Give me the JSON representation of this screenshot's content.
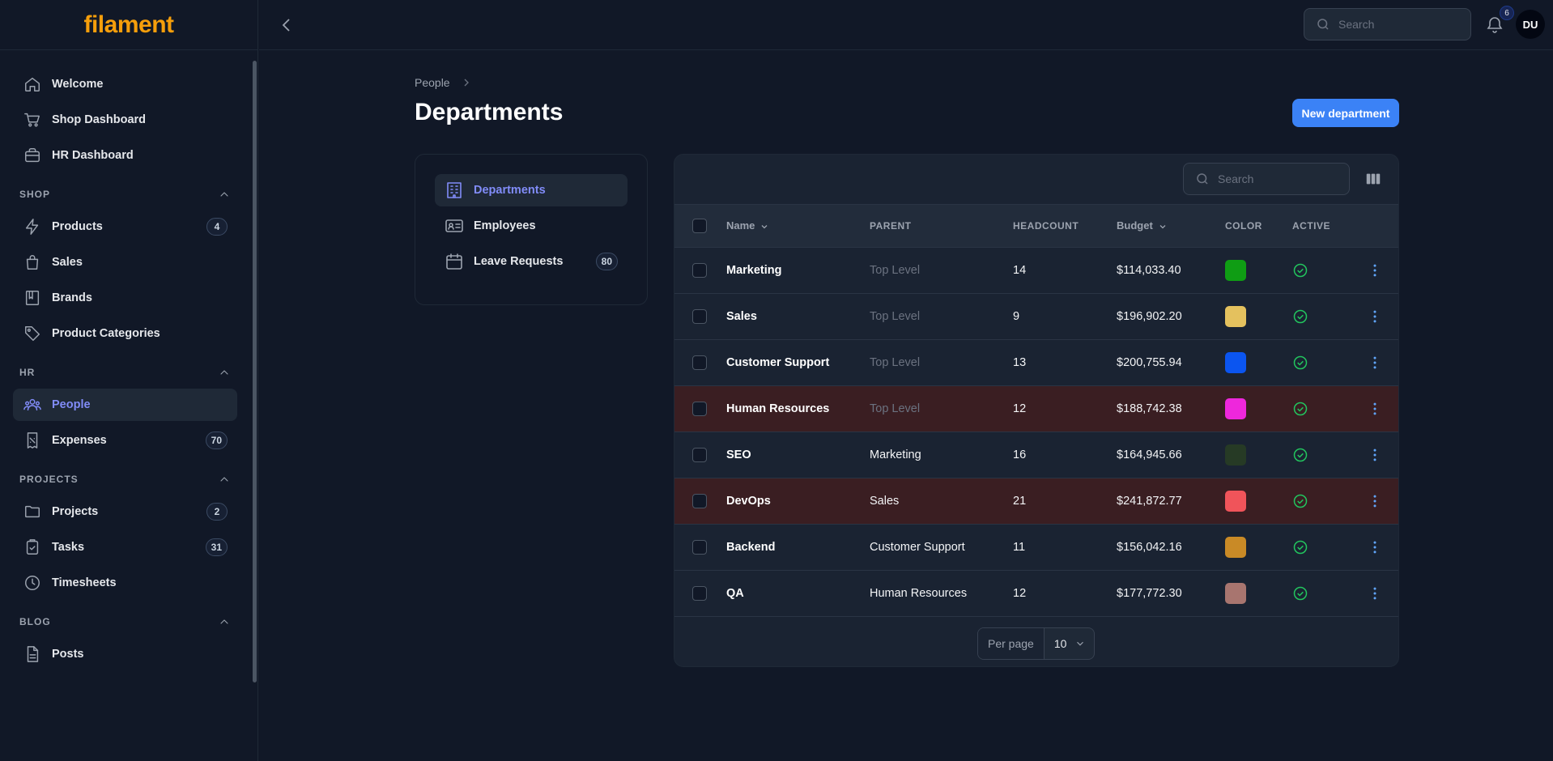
{
  "brand": "filament",
  "sidebar": {
    "top_items": [
      {
        "label": "Welcome",
        "icon": "home-icon"
      },
      {
        "label": "Shop Dashboard",
        "icon": "cart-icon"
      },
      {
        "label": "HR Dashboard",
        "icon": "briefcase-icon"
      }
    ],
    "groups": [
      {
        "label": "SHOP",
        "items": [
          {
            "label": "Products",
            "icon": "bolt-icon",
            "badge": "4"
          },
          {
            "label": "Sales",
            "icon": "bag-icon"
          },
          {
            "label": "Brands",
            "icon": "book-icon"
          },
          {
            "label": "Product Categories",
            "icon": "tag-icon"
          }
        ]
      },
      {
        "label": "HR",
        "items": [
          {
            "label": "People",
            "icon": "users-icon",
            "active": true
          },
          {
            "label": "Expenses",
            "icon": "receipt-icon",
            "badge": "70"
          }
        ]
      },
      {
        "label": "PROJECTS",
        "items": [
          {
            "label": "Projects",
            "icon": "folder-icon",
            "badge": "2"
          },
          {
            "label": "Tasks",
            "icon": "clipboard-check-icon",
            "badge": "31"
          },
          {
            "label": "Timesheets",
            "icon": "clock-icon"
          }
        ]
      },
      {
        "label": "BLOG",
        "items": [
          {
            "label": "Posts",
            "icon": "document-icon"
          }
        ]
      }
    ]
  },
  "topbar": {
    "search_placeholder": "Search",
    "notification_count": "6",
    "avatar_initials": "DU"
  },
  "breadcrumb": {
    "parent": "People"
  },
  "page": {
    "title": "Departments",
    "new_button": "New department"
  },
  "subnav": [
    {
      "label": "Departments",
      "icon": "building-icon",
      "active": true
    },
    {
      "label": "Employees",
      "icon": "id-card-icon"
    },
    {
      "label": "Leave Requests",
      "icon": "calendar-icon",
      "badge": "80"
    }
  ],
  "table": {
    "search_placeholder": "Search",
    "columns": {
      "name": "Name",
      "parent": "PARENT",
      "headcount": "HEADCOUNT",
      "budget": "Budget",
      "color": "COLOR",
      "active": "ACTIVE"
    },
    "rows": [
      {
        "name": "Marketing",
        "parent": "Top Level",
        "parent_muted": true,
        "headcount": "14",
        "budget": "$114,033.40",
        "color": "#0f9d14",
        "active": true,
        "danger": false
      },
      {
        "name": "Sales",
        "parent": "Top Level",
        "parent_muted": true,
        "headcount": "9",
        "budget": "$196,902.20",
        "color": "#e4c15e",
        "active": true,
        "danger": false
      },
      {
        "name": "Customer Support",
        "parent": "Top Level",
        "parent_muted": true,
        "headcount": "13",
        "budget": "$200,755.94",
        "color": "#0b55f0",
        "active": true,
        "danger": false
      },
      {
        "name": "Human Resources",
        "parent": "Top Level",
        "parent_muted": true,
        "headcount": "12",
        "budget": "$188,742.38",
        "color": "#ee27dc",
        "active": true,
        "danger": true
      },
      {
        "name": "SEO",
        "parent": "Marketing",
        "parent_muted": false,
        "headcount": "16",
        "budget": "$164,945.66",
        "color": "#263a25",
        "active": true,
        "danger": false
      },
      {
        "name": "DevOps",
        "parent": "Sales",
        "parent_muted": false,
        "headcount": "21",
        "budget": "$241,872.77",
        "color": "#f0545a",
        "active": true,
        "danger": true
      },
      {
        "name": "Backend",
        "parent": "Customer Support",
        "parent_muted": false,
        "headcount": "11",
        "budget": "$156,042.16",
        "color": "#c98a26",
        "active": true,
        "danger": false
      },
      {
        "name": "QA",
        "parent": "Human Resources",
        "parent_muted": false,
        "headcount": "12",
        "budget": "$177,772.30",
        "color": "#a8756f",
        "active": true,
        "danger": false
      }
    ],
    "per_page_label": "Per page",
    "per_page_value": "10"
  }
}
